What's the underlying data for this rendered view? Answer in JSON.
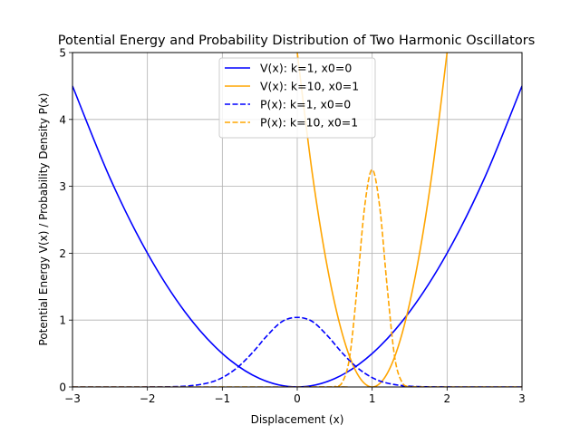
{
  "chart_data": {
    "type": "line",
    "title": "Potential Energy and Probability Distribution of Two Harmonic Oscillators",
    "xlabel": "Displacement (x)",
    "ylabel": "Potential Energy V(x) / Probability Density P(x)",
    "xlim": [
      -3,
      3
    ],
    "ylim": [
      0,
      5
    ],
    "x_ticks": [
      -3,
      -2,
      -1,
      0,
      1,
      2,
      3
    ],
    "y_ticks": [
      0,
      1,
      2,
      3,
      4,
      5
    ],
    "x_tick_labels": [
      "−3",
      "−2",
      "−1",
      "0",
      "1",
      "2",
      "3"
    ],
    "y_tick_labels": [
      "0",
      "1",
      "2",
      "3",
      "4",
      "5"
    ],
    "grid": true,
    "legend_position": "top-center",
    "series": [
      {
        "name": "V(x): k=1, x0=0",
        "color": "#0000ff",
        "style": "solid",
        "x": [
          -3,
          -2.5,
          -2,
          -1.5,
          -1,
          -0.5,
          0,
          0.5,
          1,
          1.5,
          2,
          2.5,
          3
        ],
        "y": [
          4.5,
          3.125,
          2.0,
          1.125,
          0.5,
          0.125,
          0,
          0.125,
          0.5,
          1.125,
          2.0,
          3.125,
          4.5
        ]
      },
      {
        "name": "V(x): k=10, x0=1",
        "color": "#ffa500",
        "style": "solid",
        "x": [
          0,
          0.2,
          0.4,
          0.6,
          0.8,
          1.0,
          1.2,
          1.4,
          1.6,
          1.8,
          2.0
        ],
        "y": [
          5.0,
          3.2,
          1.8,
          0.8,
          0.2,
          0,
          0.2,
          0.8,
          1.8,
          3.2,
          5.0
        ]
      },
      {
        "name": "P(x): k=1, x0=0",
        "color": "#0000ff",
        "style": "dashed",
        "x": [
          -3,
          -2,
          -1.5,
          -1.2,
          -1.0,
          -0.8,
          -0.6,
          -0.4,
          -0.2,
          0,
          0.2,
          0.4,
          0.6,
          0.8,
          1.0,
          1.2,
          1.5,
          2,
          3
        ],
        "y": [
          0,
          0.0003,
          0.011,
          0.058,
          0.14,
          0.29,
          0.51,
          0.77,
          0.98,
          1.04,
          0.98,
          0.77,
          0.51,
          0.29,
          0.14,
          0.058,
          0.011,
          0.0003,
          0
        ]
      },
      {
        "name": "P(x): k=10, x0=1",
        "color": "#ffa500",
        "style": "dashed",
        "x": [
          -3,
          0.4,
          0.5,
          0.6,
          0.7,
          0.8,
          0.9,
          1.0,
          1.1,
          1.2,
          1.3,
          1.4,
          1.5,
          1.6,
          3
        ],
        "y": [
          0,
          0.0004,
          0.006,
          0.067,
          0.45,
          1.5,
          2.7,
          3.25,
          2.7,
          1.5,
          0.45,
          0.067,
          0.006,
          0.0004,
          0
        ]
      }
    ]
  }
}
